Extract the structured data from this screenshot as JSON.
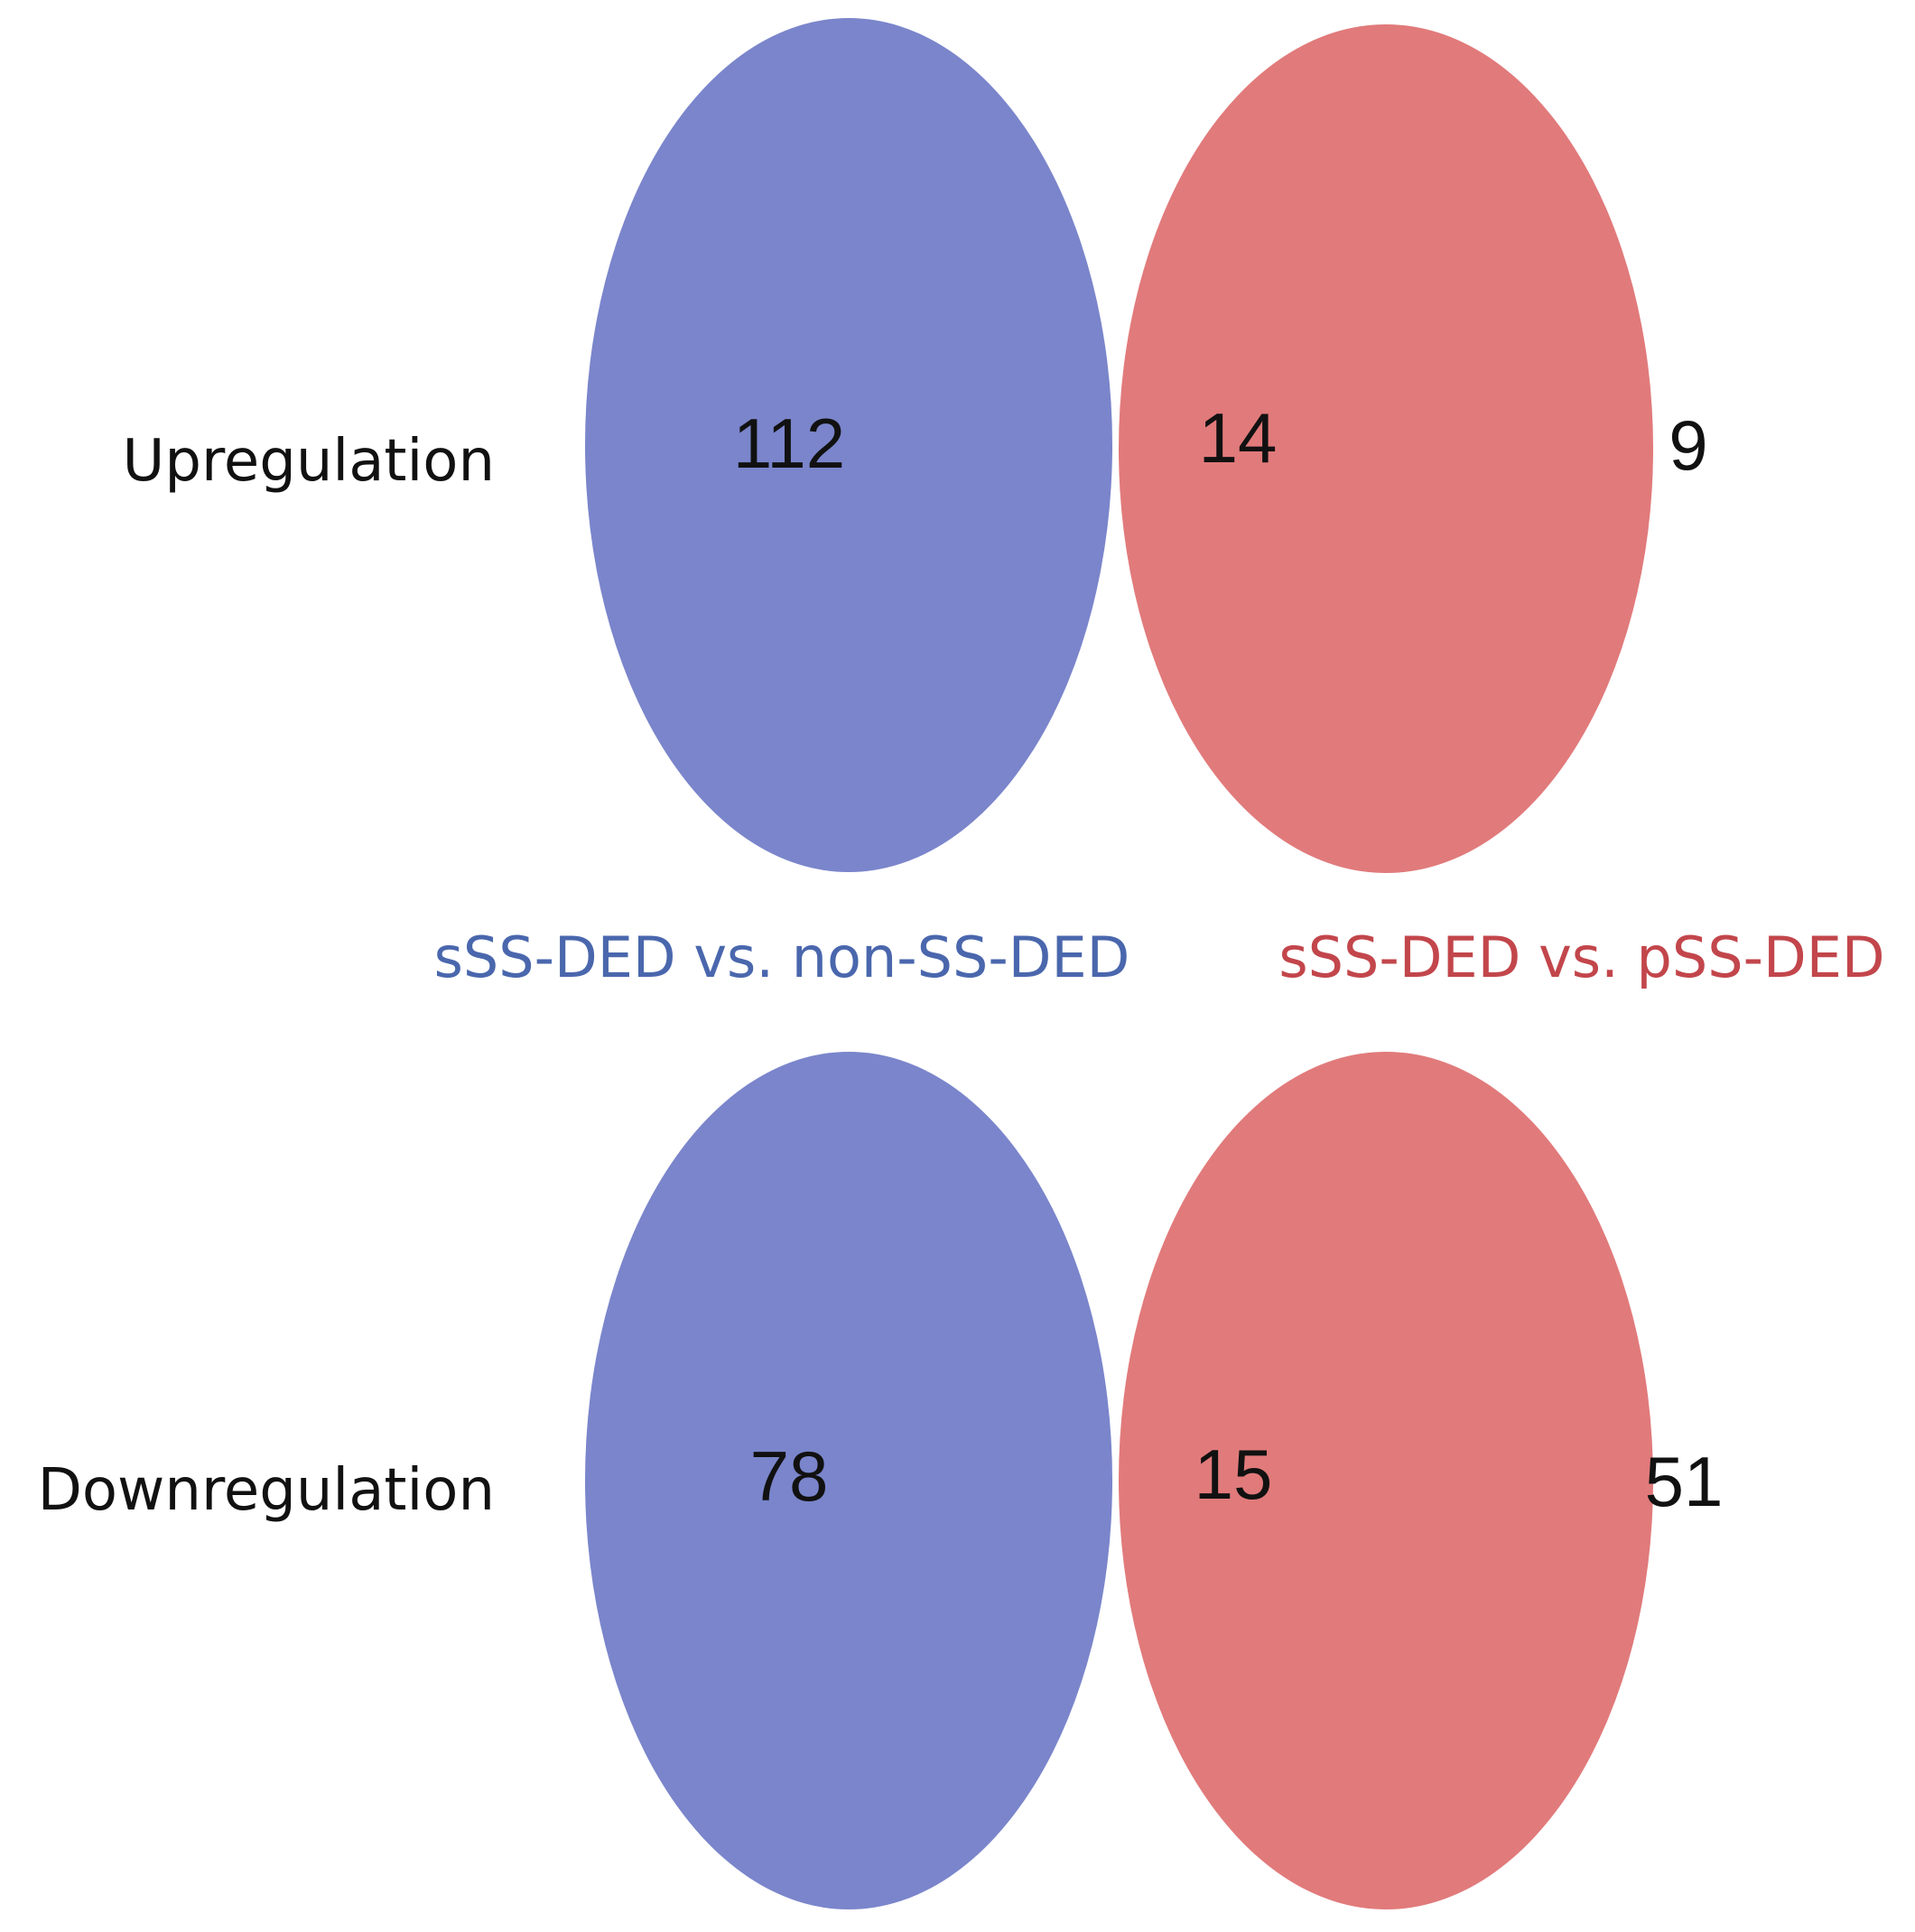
{
  "colors": {
    "blue_set": "#5563bd",
    "red_set": "#d85456",
    "blue_label": "#4a67ad",
    "red_label": "#c2464b"
  },
  "set_labels": {
    "left": "sSS-DED vs. non-SS-DED",
    "right": "sSS-DED vs. pSS-DED"
  },
  "rows": [
    {
      "label": "Upregulation",
      "left_only": "112",
      "overlap": "14",
      "right_only": "9"
    },
    {
      "label": "Downregulation",
      "left_only": "78",
      "overlap": "15",
      "right_only": "51"
    }
  ]
}
